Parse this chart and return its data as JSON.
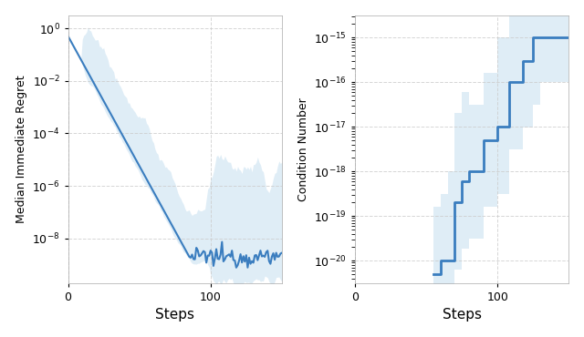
{
  "fig_width": 6.4,
  "fig_height": 3.7,
  "dpi": 100,
  "line_color": "#3a7dbf",
  "fill_color": "#c5dff0",
  "fill_alpha": 0.55,
  "grid_color": "#cccccc",
  "left_ylabel": "Median Immediate Regret",
  "left_xlabel": "Steps",
  "right_ylabel": "Condition Number",
  "right_xlabel": "Steps",
  "left_xlim": [
    0,
    150
  ],
  "right_xlim": [
    0,
    150
  ]
}
